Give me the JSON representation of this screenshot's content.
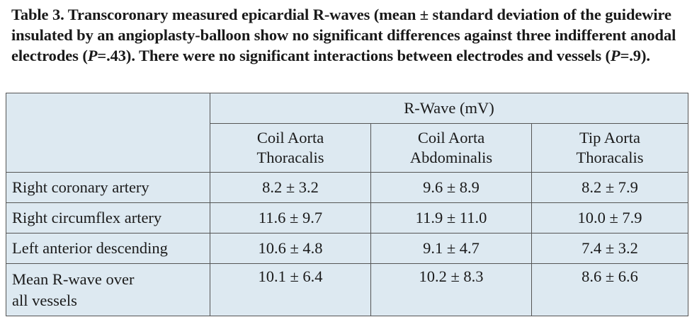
{
  "caption": {
    "part1": "Table 3. Transcoronary measured epicardial R-waves (mean ± standard deviation of the guidewire insulated by an angioplasty-balloon show no significant differences against three indifferent anodal electrodes (",
    "p1_letter": "P",
    "p1_value": "=.43). There were no significant interactions between electrodes and vessels (",
    "p2_letter": "P",
    "p2_value": "=.9)."
  },
  "table": {
    "group_header": "R-Wave (mV)",
    "columns": [
      {
        "line1": "Coil Aorta",
        "line2": "Thoracalis"
      },
      {
        "line1": "Coil Aorta",
        "line2": "Abdominalis"
      },
      {
        "line1": "Tip Aorta",
        "line2": "Thoracalis"
      }
    ],
    "rows": [
      {
        "label_line1": "Right coronary artery",
        "label_line2": "",
        "values": [
          "8.2 ± 3.2",
          "9.6 ± 8.9",
          "8.2 ± 7.9"
        ]
      },
      {
        "label_line1": "Right circumflex artery",
        "label_line2": "",
        "values": [
          "11.6 ± 9.7",
          "11.9 ± 11.0",
          "10.0 ± 7.9"
        ]
      },
      {
        "label_line1": "Left anterior descending",
        "label_line2": "",
        "values": [
          "10.6 ± 4.8",
          "9.1 ± 4.7",
          "7.4 ± 3.2"
        ]
      },
      {
        "label_line1": "Mean R-wave over",
        "label_line2": "all vessels",
        "values": [
          "10.1 ± 6.4",
          "10.2 ± 8.3",
          "8.6 ± 6.6"
        ]
      }
    ]
  }
}
